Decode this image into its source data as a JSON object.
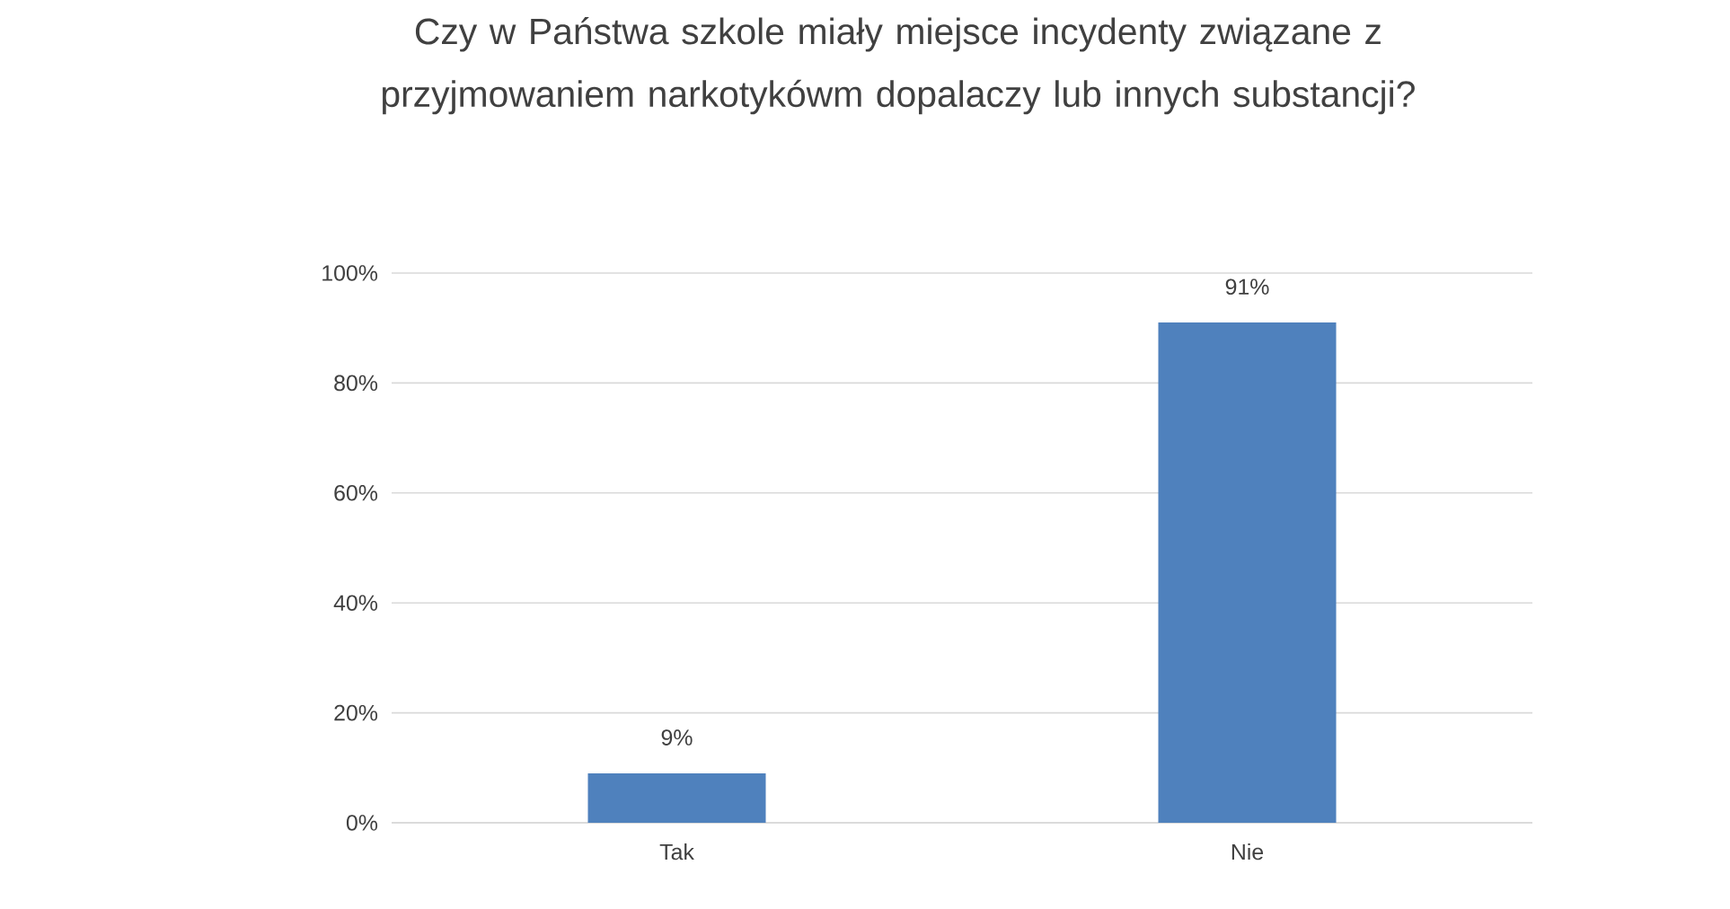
{
  "chart_data": {
    "type": "bar",
    "title": "Czy w Państwa szkole miały miejsce incydenty związane z przyjmowaniem narkotykówm dopalaczy lub innych substancji?",
    "categories": [
      "Tak",
      "Nie"
    ],
    "values": [
      9,
      91
    ],
    "color": "#4f81bd",
    "value_labels": [
      "9%",
      "91%"
    ],
    "ylim": [
      0,
      100
    ],
    "yticks": [
      {
        "value": 0,
        "label": "0%"
      },
      {
        "value": 20,
        "label": "20%"
      },
      {
        "value": 40,
        "label": "40%"
      },
      {
        "value": 60,
        "label": "60%"
      },
      {
        "value": 80,
        "label": "80%"
      },
      {
        "value": 100,
        "label": "100%"
      }
    ],
    "grid": "y"
  }
}
